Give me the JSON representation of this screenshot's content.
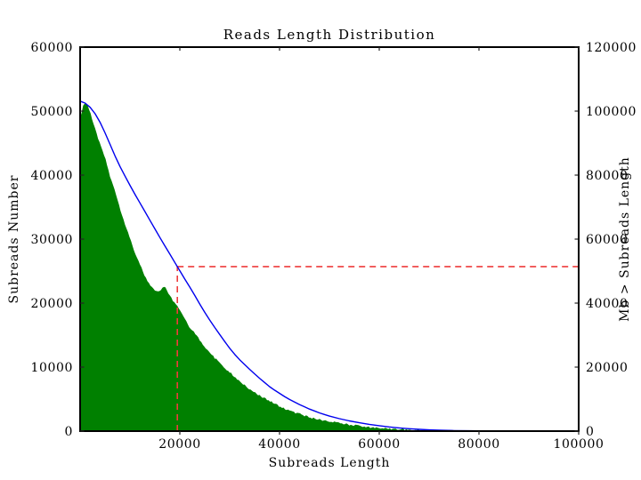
{
  "colors": {
    "histogram_fill": "#008000",
    "cumulative_line": "#0000ee",
    "marker_dashed": "#ee3c3c",
    "frame": "#000000",
    "tick": "#262626",
    "background": "#ffffff"
  },
  "chart_data": {
    "type": "area+line",
    "title": "Reads Length Distribution",
    "xlabel": "Subreads Length",
    "ylabel_left": "Subreads Number",
    "ylabel_right": "Mb > Subreads Length",
    "xlim": [
      0,
      100000
    ],
    "ylim_left": [
      0,
      60000
    ],
    "ylim_right": [
      0,
      120000
    ],
    "xticks": [
      20000,
      40000,
      60000,
      80000,
      100000
    ],
    "yticks_left": [
      0,
      10000,
      20000,
      30000,
      40000,
      50000,
      60000
    ],
    "yticks_right": [
      0,
      20000,
      40000,
      60000,
      80000,
      100000,
      120000
    ],
    "grid": false,
    "legend": "none",
    "series": [
      {
        "name": "subreads-number-histogram",
        "type": "area",
        "axis": "left",
        "color": "#008000",
        "x": [
          0,
          500,
          1000,
          1500,
          2000,
          3000,
          4000,
          5000,
          6000,
          7000,
          8000,
          9000,
          10000,
          11000,
          12000,
          13000,
          14000,
          15000,
          15500,
          16000,
          16500,
          17000,
          17500,
          18000,
          19000,
          20000,
          21000,
          22000,
          23000,
          24000,
          25000,
          26000,
          27000,
          28000,
          29000,
          30000,
          31000,
          32000,
          33000,
          34000,
          35000,
          36000,
          37000,
          38000,
          39000,
          40000,
          41000,
          42000,
          43000,
          44000,
          45000,
          46000,
          47000,
          48000,
          49000,
          50000,
          52000,
          54000,
          56000,
          58000,
          60000,
          62000,
          64000,
          66000,
          68000,
          70000,
          72000,
          75000,
          80000
        ],
        "y": [
          48800,
          50600,
          51300,
          50900,
          49800,
          47200,
          44800,
          42800,
          39800,
          37600,
          34800,
          32400,
          30100,
          27900,
          26000,
          24200,
          22800,
          21900,
          21700,
          21900,
          22300,
          22700,
          21900,
          21100,
          19900,
          19000,
          17600,
          16200,
          15300,
          14200,
          13200,
          12300,
          11400,
          10800,
          9900,
          9200,
          8500,
          7800,
          7200,
          6600,
          6000,
          5600,
          5100,
          4700,
          4300,
          3900,
          3500,
          3200,
          2900,
          2700,
          2400,
          2150,
          1950,
          1800,
          1650,
          1500,
          1250,
          1000,
          800,
          620,
          480,
          370,
          280,
          200,
          140,
          90,
          50,
          20,
          0
        ]
      },
      {
        "name": "mb-greater-than-length-cumulative",
        "type": "line",
        "axis": "right",
        "color": "#0000ee",
        "x": [
          0,
          1000,
          2000,
          3000,
          4000,
          5000,
          6000,
          7000,
          8000,
          9000,
          10000,
          11000,
          12000,
          13000,
          14000,
          15000,
          16000,
          17000,
          18000,
          19000,
          19500,
          20000,
          21000,
          22000,
          23000,
          24000,
          25000,
          26000,
          27000,
          28000,
          29000,
          30000,
          31000,
          32000,
          33000,
          34000,
          35000,
          36000,
          37000,
          38000,
          39000,
          40000,
          41000,
          42000,
          43000,
          44000,
          45000,
          46000,
          47000,
          48000,
          49000,
          50000,
          52000,
          54000,
          56000,
          58000,
          60000,
          62000,
          64000,
          66000,
          68000,
          70000,
          72000,
          75000,
          78000,
          80000,
          84000,
          88000,
          92000,
          96000,
          100000
        ],
        "y": [
          103100,
          102500,
          101200,
          99200,
          96500,
          93200,
          89600,
          86000,
          82700,
          79700,
          76800,
          74000,
          71300,
          68600,
          65900,
          63200,
          60500,
          57900,
          55300,
          52700,
          51400,
          50100,
          47500,
          45000,
          42400,
          39700,
          37100,
          34700,
          32400,
          30200,
          28000,
          25900,
          24000,
          22300,
          20800,
          19300,
          17900,
          16500,
          15200,
          13900,
          12800,
          11800,
          10800,
          9900,
          9100,
          8300,
          7600,
          6900,
          6300,
          5700,
          5200,
          4700,
          3900,
          3200,
          2600,
          2100,
          1700,
          1300,
          1000,
          750,
          550,
          400,
          290,
          170,
          100,
          70,
          30,
          10,
          3,
          0,
          0
        ]
      }
    ],
    "marker": {
      "name": "n50-crosshair",
      "style": "dashed",
      "color": "#ee3c3c",
      "x": 19500,
      "value_right_axis": 51400,
      "vertical_line": "from x-axis up to cumulative curve at x=19500",
      "horizontal_line": "from cumulative curve at x=19500 right to the right axis"
    }
  }
}
